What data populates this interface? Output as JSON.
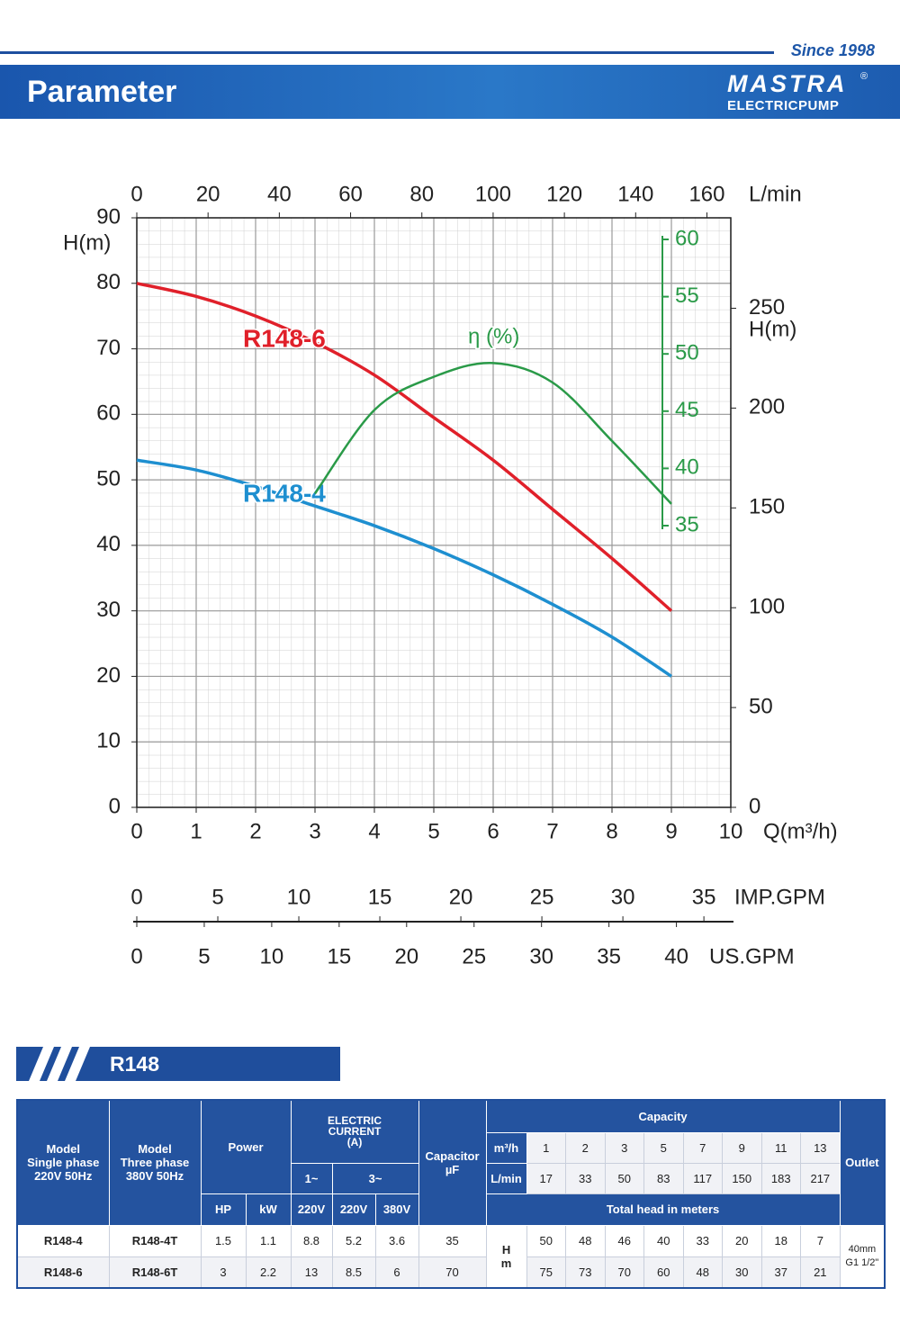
{
  "header": {
    "since": "Since 1998",
    "title": "Parameter",
    "brand": "MASTRA",
    "registered": "®",
    "brand_sub": "ELECTRICPUMP"
  },
  "chart_data": {
    "type": "line",
    "x_label": "Q(m³/h)",
    "xlim": [
      0,
      10
    ],
    "xticks": [
      0,
      1,
      2,
      3,
      4,
      5,
      6,
      7,
      8,
      9,
      10
    ],
    "y_label": "H(m)",
    "ylim": [
      0,
      90
    ],
    "yticks": [
      0,
      10,
      20,
      30,
      40,
      50,
      60,
      70,
      80,
      90
    ],
    "y2_label": "H(m)",
    "y2lim": [
      0,
      295.3
    ],
    "y2ticks": [
      0,
      50,
      100,
      150,
      200,
      250
    ],
    "x2_label": "L/min",
    "x2lim": [
      0,
      166.7
    ],
    "x2ticks": [
      0,
      20,
      40,
      60,
      80,
      100,
      120,
      140,
      160
    ],
    "x3_label": "IMP.GPM",
    "x3lim": [
      0,
      36.66
    ],
    "x3ticks": [
      0,
      5,
      10,
      15,
      20,
      25,
      30,
      35
    ],
    "x4_label": "US.GPM",
    "x4lim": [
      0,
      44.03
    ],
    "x4ticks": [
      0,
      5,
      10,
      15,
      20,
      25,
      30,
      35,
      40
    ],
    "eff_axis": {
      "lim": [
        35,
        60
      ],
      "ticks": [
        35,
        40,
        45,
        50,
        55,
        60
      ],
      "color": "#2a9a48"
    },
    "grid": true,
    "x": [
      0,
      1,
      2,
      3,
      4,
      5,
      6,
      7,
      8,
      9
    ],
    "series": [
      {
        "name": "R148-6",
        "color": "#e0202a",
        "values": [
          80,
          78,
          75,
          71,
          66,
          59.5,
          53,
          45.5,
          38,
          30
        ]
      },
      {
        "name": "R148-4",
        "color": "#1e8fd0",
        "values": [
          53,
          51.5,
          49,
          46,
          43,
          39.5,
          35.5,
          31,
          26,
          20
        ]
      },
      {
        "name": "η (%)",
        "color": "#2a9a48",
        "axis": "eff",
        "values": [
          null,
          null,
          null,
          37.8,
          45.1,
          48,
          49.2,
          47.5,
          42.4,
          36.9
        ]
      }
    ]
  },
  "table": {
    "title": "R148",
    "head": {
      "model_single": [
        "Model",
        "Single phase",
        "220V 50Hz"
      ],
      "model_three": [
        "Model",
        "Three phase",
        "380V 50Hz"
      ],
      "power": "Power",
      "current": [
        "ELECTRIC",
        "CURRENT",
        "(A)"
      ],
      "phase1": "1~",
      "phase3": "3~",
      "hp": "HP",
      "kw": "kW",
      "v1": "220V",
      "v2": "220V",
      "v3": "380V",
      "capacitor": [
        "Capacitor",
        "µF"
      ],
      "capacity": "Capacity",
      "flow_m3h": {
        "label": "m³/h",
        "values": [
          1,
          2,
          3,
          5,
          7,
          9,
          11,
          13
        ]
      },
      "flow_lmin": {
        "label": "L/min",
        "values": [
          17,
          33,
          50,
          83,
          117,
          150,
          183,
          217
        ]
      },
      "total_head": "Total head in meters",
      "head_unit": [
        "H",
        "m"
      ],
      "outlet": "Outlet"
    },
    "rows": [
      {
        "model_single": "R148-4",
        "model_three": "R148-4T",
        "hp": 1.5,
        "kw": 1.1,
        "a1": 8.8,
        "a2": 5.2,
        "a3": 3.6,
        "capacitor": 35,
        "heads": [
          50,
          48,
          46,
          40,
          33,
          20,
          18,
          7
        ]
      },
      {
        "model_single": "R148-6",
        "model_three": "R148-6T",
        "hp": 3,
        "kw": 2.2,
        "a1": 13,
        "a2": 8.5,
        "a3": 6,
        "capacitor": 70,
        "heads": [
          75,
          73,
          70,
          60,
          48,
          30,
          37,
          21
        ]
      }
    ],
    "outlet": [
      "40mm",
      "G1 1/2\""
    ]
  }
}
